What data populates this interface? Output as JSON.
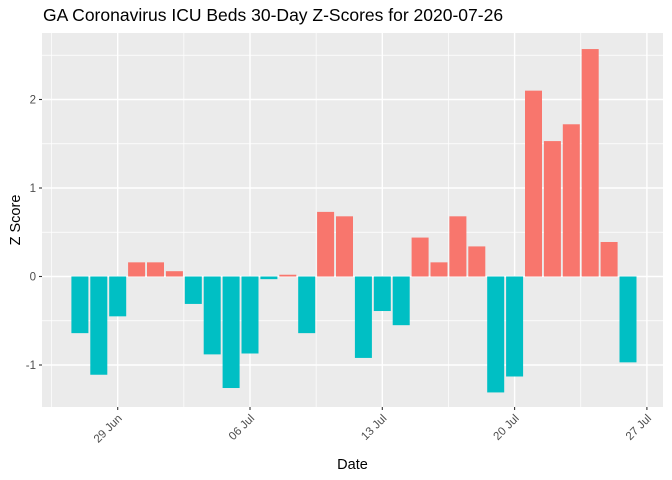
{
  "chart_data": {
    "type": "bar",
    "title": "GA Coronavirus ICU Beds 30-Day Z-Scores for 2020-07-26",
    "xlabel": "Date",
    "ylabel": "Z Score",
    "grid": true,
    "legend": "none",
    "ylim": [
      -1.47,
      2.76
    ],
    "dates": [
      "2020-06-27",
      "2020-06-28",
      "2020-06-29",
      "2020-06-30",
      "2020-07-01",
      "2020-07-02",
      "2020-07-03",
      "2020-07-04",
      "2020-07-05",
      "2020-07-06",
      "2020-07-07",
      "2020-07-08",
      "2020-07-09",
      "2020-07-10",
      "2020-07-11",
      "2020-07-12",
      "2020-07-13",
      "2020-07-14",
      "2020-07-15",
      "2020-07-16",
      "2020-07-17",
      "2020-07-18",
      "2020-07-19",
      "2020-07-20",
      "2020-07-21",
      "2020-07-22",
      "2020-07-23",
      "2020-07-24",
      "2020-07-25",
      "2020-07-26"
    ],
    "values": [
      -0.64,
      -1.11,
      -0.45,
      0.16,
      0.16,
      0.06,
      -0.31,
      -0.88,
      -1.26,
      -0.87,
      -0.03,
      0.02,
      -0.64,
      0.73,
      0.68,
      -0.92,
      -0.39,
      -0.55,
      0.44,
      0.16,
      0.68,
      0.34,
      -1.31,
      -1.13,
      2.1,
      1.53,
      1.72,
      2.57,
      0.39,
      -0.97
    ],
    "x_ticks": [
      {
        "label": "29 Jun",
        "day_index": 2
      },
      {
        "label": "06 Jul",
        "day_index": 9
      },
      {
        "label": "13 Jul",
        "day_index": 16
      },
      {
        "label": "20 Jul",
        "day_index": 23
      },
      {
        "label": "27 Jul",
        "day_index": 30
      }
    ],
    "x_minor_day_indices": [
      -1.5,
      5.5,
      12.5,
      19.5,
      26.5
    ],
    "y_ticks": [
      2,
      1,
      0,
      -1
    ],
    "y_minor_ticks": [
      2.5,
      1.5,
      0.5,
      -0.5
    ],
    "colors": {
      "positive_bar": "#F8766D",
      "negative_bar": "#00BFC4",
      "panel_background": "#EBEBEB",
      "gridline": "#FFFFFF",
      "tick_mark": "#333333",
      "tick_label": "#4D4D4D",
      "title_text": "#000000",
      "axis_title_text": "#000000"
    }
  }
}
